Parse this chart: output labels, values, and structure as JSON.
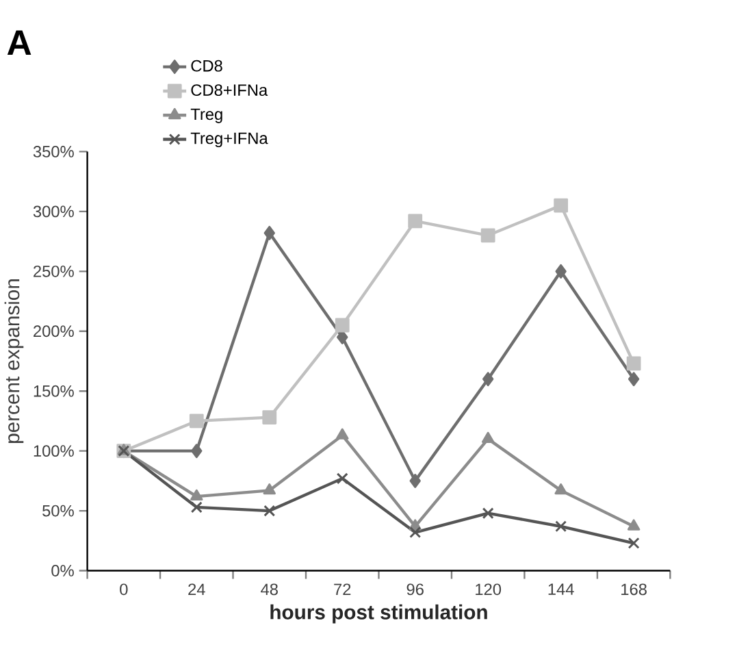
{
  "chart_data": {
    "type": "line",
    "xlabel": "hours post stimulation",
    "ylabel": "percent expansion",
    "annotations": [
      "A"
    ],
    "categories": [
      "0",
      "24",
      "48",
      "72",
      "96",
      "120",
      "144",
      "168"
    ],
    "series": [
      {
        "name": "CD8",
        "color": "#6e6e6e",
        "marker": "diamond",
        "values": [
          100,
          100,
          282,
          195,
          75,
          160,
          250,
          160
        ]
      },
      {
        "name": "CD8+IFNa",
        "color": "#c0c0c0",
        "marker": "square",
        "values": [
          100,
          125,
          128,
          205,
          292,
          280,
          305,
          173
        ]
      },
      {
        "name": "Treg",
        "color": "#8c8c8c",
        "marker": "triangle",
        "values": [
          100,
          62,
          67,
          113,
          37,
          110,
          67,
          37
        ]
      },
      {
        "name": "Treg+IFNa",
        "color": "#555555",
        "marker": "cross",
        "values": [
          100,
          53,
          50,
          77,
          32,
          48,
          37,
          23
        ]
      }
    ],
    "ylim": [
      0,
      350
    ],
    "yticks": [
      {
        "value": 0,
        "label": "0%"
      },
      {
        "value": 50,
        "label": "50%"
      },
      {
        "value": 100,
        "label": "100%"
      },
      {
        "value": 150,
        "label": "150%"
      },
      {
        "value": 200,
        "label": "200%"
      },
      {
        "value": 250,
        "label": "250%"
      },
      {
        "value": 300,
        "label": "300%"
      },
      {
        "value": 350,
        "label": "350%"
      }
    ],
    "grid": false,
    "legend": "top left",
    "line_style": "solid"
  }
}
